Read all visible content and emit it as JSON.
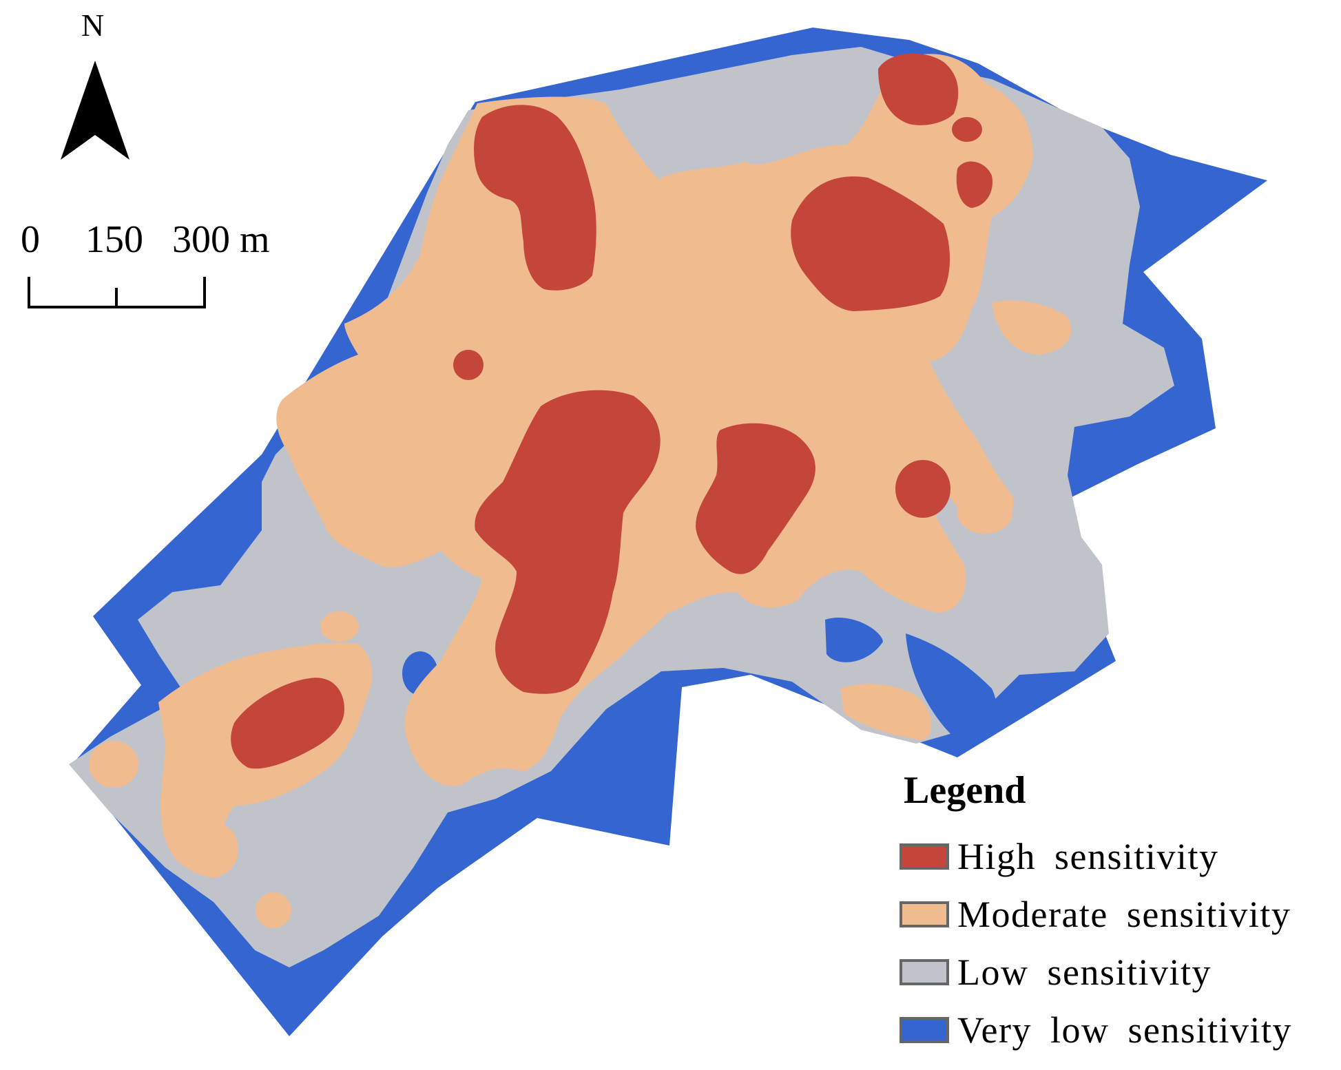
{
  "north_arrow": {
    "label": "N",
    "icon": "north-arrow-icon"
  },
  "scale_bar": {
    "labels": [
      "0",
      "150",
      "300 m"
    ]
  },
  "legend": {
    "title": "Legend",
    "items": [
      {
        "label": "High sensitivity",
        "color": "#c4463a"
      },
      {
        "label": "Moderate sensitivity",
        "color": "#f0bc8f"
      },
      {
        "label": "Low sensitivity",
        "color": "#c0c3c9"
      },
      {
        "label": "Very low sensitivity",
        "color": "#3565d1"
      }
    ]
  }
}
